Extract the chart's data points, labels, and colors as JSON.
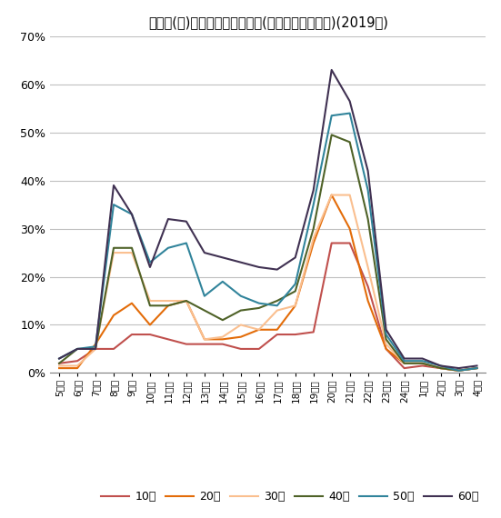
{
  "title": "テレビ(生)の時間帯別行為者率(休日、年齢階層別)(2019年)",
  "x_labels": [
    "5時台",
    "6時台",
    "7時台",
    "8時台",
    "9時台",
    "10時台",
    "11時台",
    "12時台",
    "13時台",
    "14時台",
    "15時台",
    "16時台",
    "17時台",
    "18時台",
    "19時台",
    "20時台",
    "21時台",
    "22時台",
    "23時台",
    "24時台",
    "1時台",
    "2時台",
    "3時台",
    "4時台"
  ],
  "series": {
    "10代": [
      2.0,
      2.5,
      5.0,
      5.0,
      8.0,
      8.0,
      7.0,
      6.0,
      6.0,
      6.0,
      5.0,
      5.0,
      8.0,
      8.0,
      8.5,
      27.0,
      27.0,
      18.0,
      5.0,
      1.0,
      1.5,
      1.0,
      0.5,
      1.0
    ],
    "20代": [
      1.0,
      1.0,
      6.0,
      12.0,
      14.5,
      10.0,
      14.0,
      15.0,
      7.0,
      7.0,
      7.5,
      9.0,
      9.0,
      14.0,
      27.0,
      37.0,
      30.0,
      15.0,
      5.0,
      2.0,
      2.0,
      1.0,
      0.5,
      1.0
    ],
    "30代": [
      1.5,
      1.5,
      5.0,
      25.0,
      25.0,
      15.0,
      15.0,
      15.0,
      7.0,
      7.5,
      10.0,
      9.0,
      13.0,
      14.0,
      28.0,
      37.0,
      37.0,
      22.0,
      6.0,
      2.0,
      2.0,
      1.0,
      0.5,
      1.0
    ],
    "40代": [
      2.0,
      5.0,
      5.0,
      26.0,
      26.0,
      14.0,
      14.0,
      15.0,
      13.0,
      11.0,
      13.0,
      13.5,
      15.0,
      17.0,
      30.0,
      49.5,
      48.0,
      32.0,
      7.0,
      2.0,
      2.0,
      1.0,
      0.5,
      1.0
    ],
    "50代": [
      3.0,
      5.0,
      5.5,
      35.0,
      33.0,
      23.0,
      26.0,
      27.0,
      16.0,
      19.0,
      16.0,
      14.5,
      14.0,
      18.5,
      35.0,
      53.5,
      54.0,
      38.0,
      8.0,
      2.5,
      2.5,
      1.5,
      0.5,
      1.0
    ],
    "60代": [
      3.0,
      5.0,
      5.0,
      39.0,
      33.0,
      22.0,
      32.0,
      31.5,
      25.0,
      24.0,
      23.0,
      22.0,
      21.5,
      24.0,
      38.0,
      63.0,
      56.5,
      42.0,
      9.0,
      3.0,
      3.0,
      1.5,
      1.0,
      1.5
    ]
  },
  "colors": {
    "10代": "#c0504d",
    "20代": "#e36c09",
    "30代": "#fabf8f",
    "40代": "#4f6228",
    "50代": "#31849b",
    "60代": "#403152"
  },
  "ylim": [
    0,
    70
  ],
  "yticks": [
    0,
    10,
    20,
    30,
    40,
    50,
    60,
    70
  ],
  "background_color": "#ffffff",
  "grid_color": "#c0c0c0",
  "title_fontsize": 10.5
}
